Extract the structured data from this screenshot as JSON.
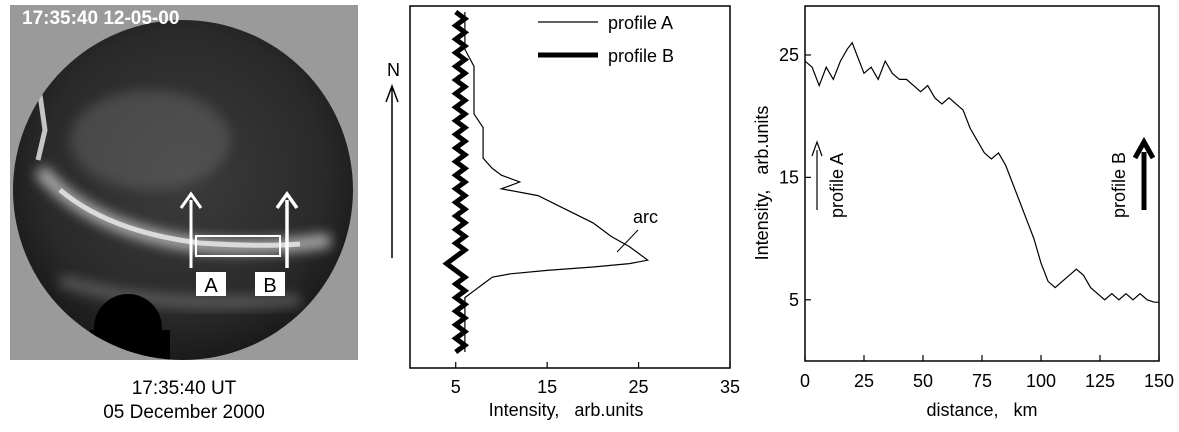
{
  "photo": {
    "timestamp": "17:35:40 12-05-00",
    "label_a": "A",
    "label_b": "B",
    "caption_time": "17:35:40 UT",
    "caption_date": "05 December 2000",
    "sky_color": "#262626",
    "frame_color": "#9a9a9a"
  },
  "chart_data": [
    {
      "type": "line",
      "orientation": "vertical-profile",
      "xlabel": "Intensity,   arb.units",
      "ylabel": "",
      "xlim": [
        0,
        35
      ],
      "xticks": [
        5,
        15,
        25,
        35
      ],
      "ylim": [
        0,
        100
      ],
      "north_label": "N",
      "grid": false,
      "legend_position": "top-right",
      "annotations": [
        {
          "text": "arc",
          "series": "profile A"
        }
      ],
      "series": [
        {
          "name": "profile A",
          "style": "thin",
          "points": [
            [
              6,
              100
            ],
            [
              6,
              97
            ],
            [
              6,
              93
            ],
            [
              6,
              89
            ],
            [
              7,
              84
            ],
            [
              7,
              79
            ],
            [
              7,
              74
            ],
            [
              7,
              70
            ],
            [
              8,
              66
            ],
            [
              8,
              62
            ],
            [
              8,
              57
            ],
            [
              9,
              54
            ],
            [
              10,
              52
            ],
            [
              12,
              50
            ],
            [
              10,
              48
            ],
            [
              14,
              46
            ],
            [
              17,
              42
            ],
            [
              20,
              38
            ],
            [
              22,
              34
            ],
            [
              24,
              31
            ],
            [
              25,
              29
            ],
            [
              26,
              27
            ],
            [
              24,
              26
            ],
            [
              20,
              25
            ],
            [
              15,
              24
            ],
            [
              11,
              23
            ],
            [
              9,
              22
            ],
            [
              8,
              20
            ],
            [
              7,
              18
            ],
            [
              6,
              16
            ],
            [
              6,
              14
            ],
            [
              6,
              12
            ],
            [
              6,
              9
            ],
            [
              6,
              6
            ],
            [
              6,
              3
            ],
            [
              6,
              0
            ]
          ]
        },
        {
          "name": "profile B",
          "style": "thick",
          "points": [
            [
              5,
              100
            ],
            [
              6,
              98
            ],
            [
              5,
              96
            ],
            [
              6,
              94
            ],
            [
              5,
              92
            ],
            [
              6,
              90
            ],
            [
              5,
              88
            ],
            [
              6,
              86
            ],
            [
              5,
              84
            ],
            [
              6,
              82
            ],
            [
              5,
              80
            ],
            [
              6,
              78
            ],
            [
              5,
              76
            ],
            [
              6,
              74
            ],
            [
              5,
              72
            ],
            [
              6,
              70
            ],
            [
              5,
              68
            ],
            [
              6,
              66
            ],
            [
              5,
              64
            ],
            [
              6,
              62
            ],
            [
              5,
              60
            ],
            [
              6,
              58
            ],
            [
              5,
              56
            ],
            [
              6,
              54
            ],
            [
              5,
              52
            ],
            [
              6,
              50
            ],
            [
              5,
              48
            ],
            [
              6,
              46
            ],
            [
              5,
              44
            ],
            [
              6,
              42
            ],
            [
              5,
              40
            ],
            [
              6,
              38
            ],
            [
              5,
              36
            ],
            [
              6,
              34
            ],
            [
              5,
              32
            ],
            [
              6,
              30
            ],
            [
              5,
              28
            ],
            [
              4,
              26
            ],
            [
              5,
              24
            ],
            [
              6,
              22
            ],
            [
              5,
              20
            ],
            [
              6,
              18
            ],
            [
              5,
              16
            ],
            [
              6,
              14
            ],
            [
              5,
              12
            ],
            [
              6,
              10
            ],
            [
              5,
              8
            ],
            [
              6,
              6
            ],
            [
              5,
              4
            ],
            [
              6,
              2
            ],
            [
              5,
              0
            ]
          ]
        }
      ]
    },
    {
      "type": "line",
      "xlabel": "distance,   km",
      "ylabel": "Intensity,   arb.units",
      "xlim": [
        0,
        150
      ],
      "ylim": [
        0,
        29
      ],
      "xticks": [
        0,
        25,
        50,
        75,
        100,
        125,
        150
      ],
      "yticks": [
        5,
        15,
        25
      ],
      "grid": false,
      "annotations": [
        {
          "text": "profile A",
          "arrow": "thin",
          "position": "left"
        },
        {
          "text": "profile B",
          "arrow": "thick",
          "position": "right"
        }
      ],
      "series": [
        {
          "name": "",
          "points": [
            [
              0,
              24.5
            ],
            [
              3,
              24.0
            ],
            [
              6,
              22.5
            ],
            [
              9,
              24.0
            ],
            [
              12,
              23.0
            ],
            [
              15,
              24.5
            ],
            [
              18,
              25.5
            ],
            [
              20,
              26.0
            ],
            [
              22,
              25.0
            ],
            [
              25,
              23.5
            ],
            [
              28,
              24.0
            ],
            [
              31,
              23.0
            ],
            [
              34,
              24.5
            ],
            [
              37,
              23.5
            ],
            [
              40,
              23.0
            ],
            [
              43,
              23.0
            ],
            [
              46,
              22.5
            ],
            [
              49,
              22.0
            ],
            [
              52,
              22.5
            ],
            [
              55,
              21.5
            ],
            [
              58,
              21.0
            ],
            [
              61,
              21.5
            ],
            [
              64,
              21.0
            ],
            [
              67,
              20.5
            ],
            [
              70,
              19.0
            ],
            [
              73,
              18.0
            ],
            [
              76,
              17.0
            ],
            [
              79,
              16.5
            ],
            [
              82,
              17.0
            ],
            [
              85,
              16.0
            ],
            [
              88,
              14.5
            ],
            [
              91,
              13.0
            ],
            [
              94,
              11.5
            ],
            [
              97,
              10.0
            ],
            [
              100,
              8.0
            ],
            [
              103,
              6.5
            ],
            [
              106,
              6.0
            ],
            [
              109,
              6.5
            ],
            [
              112,
              7.0
            ],
            [
              115,
              7.5
            ],
            [
              118,
              7.0
            ],
            [
              121,
              6.0
            ],
            [
              124,
              5.5
            ],
            [
              127,
              5.0
            ],
            [
              130,
              5.5
            ],
            [
              133,
              5.0
            ],
            [
              136,
              5.5
            ],
            [
              139,
              5.0
            ],
            [
              142,
              5.5
            ],
            [
              145,
              5.0
            ],
            [
              148,
              4.8
            ],
            [
              150,
              4.8
            ]
          ]
        }
      ]
    }
  ]
}
